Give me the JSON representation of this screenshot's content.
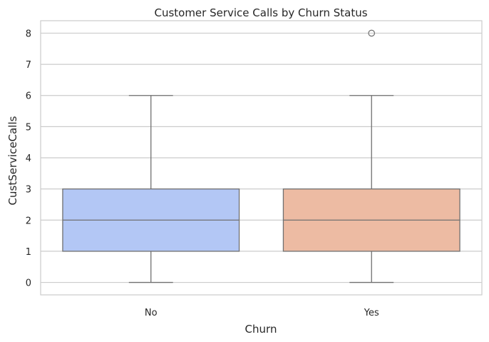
{
  "chart_data": {
    "type": "box",
    "title": "Customer Service Calls by Churn Status",
    "xlabel": "Churn",
    "ylabel": "CustServiceCalls",
    "ylim": [
      -0.4,
      8.4
    ],
    "yticks": [
      0,
      1,
      2,
      3,
      4,
      5,
      6,
      7,
      8
    ],
    "grid": true,
    "categories": [
      "No",
      "Yes"
    ],
    "boxes": [
      {
        "category": "No",
        "whisker_low": 0,
        "q1": 1,
        "median": 2,
        "q3": 3,
        "whisker_high": 6,
        "outliers": [],
        "color": "#b3c7f5"
      },
      {
        "category": "Yes",
        "whisker_low": 0,
        "q1": 1,
        "median": 2,
        "q3": 3,
        "whisker_high": 6,
        "outliers": [
          8
        ],
        "color": "#edbba3"
      }
    ]
  }
}
